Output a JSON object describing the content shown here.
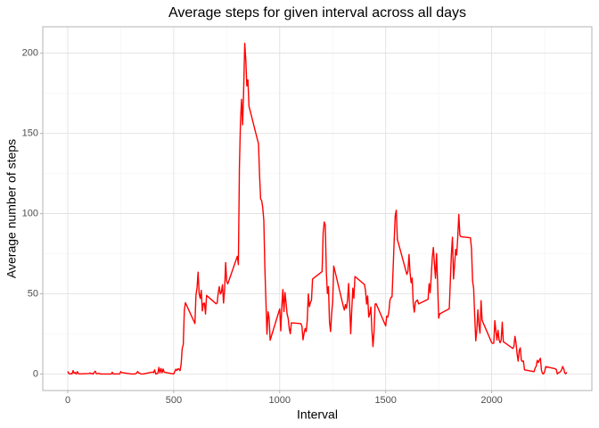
{
  "chart_data": {
    "type": "line",
    "title": "Average steps for given interval across all days",
    "x_label": "Interval",
    "y_label": "Average number of steps",
    "color": "#ff0000",
    "grid": true,
    "xlim": [
      -117.75,
      2472.75
    ],
    "ylim": [
      -10.3,
      216.5
    ],
    "xticks": [
      0,
      500,
      1000,
      1500,
      2000
    ],
    "yticks": [
      0,
      50,
      100,
      150,
      200
    ],
    "x": [
      0,
      5,
      10,
      15,
      20,
      25,
      30,
      35,
      40,
      45,
      50,
      55,
      100,
      105,
      110,
      115,
      120,
      125,
      130,
      135,
      140,
      145,
      150,
      155,
      200,
      205,
      210,
      215,
      220,
      225,
      230,
      235,
      240,
      245,
      250,
      255,
      300,
      305,
      310,
      315,
      320,
      325,
      330,
      335,
      340,
      345,
      350,
      355,
      400,
      405,
      410,
      415,
      420,
      425,
      430,
      435,
      440,
      445,
      450,
      455,
      500,
      505,
      510,
      515,
      520,
      525,
      530,
      535,
      540,
      545,
      550,
      555,
      600,
      605,
      610,
      615,
      620,
      625,
      630,
      635,
      640,
      645,
      650,
      655,
      700,
      705,
      710,
      715,
      720,
      725,
      730,
      735,
      740,
      745,
      750,
      755,
      800,
      805,
      810,
      815,
      820,
      825,
      830,
      835,
      840,
      845,
      850,
      855,
      900,
      905,
      910,
      915,
      920,
      925,
      930,
      935,
      940,
      945,
      950,
      955,
      1000,
      1005,
      1010,
      1015,
      1020,
      1025,
      1030,
      1035,
      1040,
      1045,
      1050,
      1055,
      1100,
      1105,
      1110,
      1115,
      1120,
      1125,
      1130,
      1135,
      1140,
      1145,
      1150,
      1155,
      1200,
      1205,
      1210,
      1215,
      1220,
      1225,
      1230,
      1235,
      1240,
      1245,
      1250,
      1255,
      1300,
      1305,
      1310,
      1315,
      1320,
      1325,
      1330,
      1335,
      1340,
      1345,
      1350,
      1355,
      1400,
      1405,
      1410,
      1415,
      1420,
      1425,
      1430,
      1435,
      1440,
      1445,
      1450,
      1455,
      1500,
      1505,
      1510,
      1515,
      1520,
      1525,
      1530,
      1535,
      1540,
      1545,
      1550,
      1555,
      1600,
      1605,
      1610,
      1615,
      1620,
      1625,
      1630,
      1635,
      1640,
      1645,
      1650,
      1655,
      1700,
      1705,
      1710,
      1715,
      1720,
      1725,
      1730,
      1735,
      1740,
      1745,
      1750,
      1755,
      1800,
      1805,
      1810,
      1815,
      1820,
      1825,
      1830,
      1835,
      1840,
      1845,
      1850,
      1855,
      1900,
      1905,
      1910,
      1915,
      1920,
      1925,
      1930,
      1935,
      1940,
      1945,
      1950,
      1955,
      2000,
      2005,
      2010,
      2015,
      2020,
      2025,
      2030,
      2035,
      2040,
      2045,
      2050,
      2055,
      2100,
      2105,
      2110,
      2115,
      2120,
      2125,
      2130,
      2135,
      2140,
      2145,
      2150,
      2155,
      2200,
      2205,
      2210,
      2215,
      2220,
      2225,
      2230,
      2235,
      2240,
      2245,
      2250,
      2255,
      2300,
      2305,
      2310,
      2315,
      2320,
      2325,
      2330,
      2335,
      2340,
      2345,
      2350,
      2355
    ],
    "values": [
      1.7,
      0.3,
      0.1,
      0.2,
      0.1,
      2.1,
      0.5,
      0.9,
      0,
      1.5,
      0.3,
      0.1,
      0.3,
      0.7,
      0.2,
      0.3,
      0,
      1.1,
      1.8,
      0.2,
      0.2,
      0.4,
      0.3,
      0,
      0,
      0,
      1.1,
      0,
      0,
      0.1,
      0,
      0.2,
      0,
      0,
      1.5,
      0.9,
      0,
      0,
      0,
      0,
      0.2,
      0.6,
      1.6,
      0.6,
      0.5,
      0.1,
      0,
      0,
      1.2,
      0.9,
      2.6,
      0,
      0.3,
      0.4,
      4.1,
      0.7,
      3.5,
      0.8,
      3.1,
      1.1,
      0,
      1.6,
      3,
      2.2,
      3.3,
      3,
      2.1,
      6.1,
      16,
      18.3,
      39.5,
      44.5,
      31.5,
      49.3,
      53.8,
      63.5,
      50,
      47.1,
      52.2,
      39.3,
      44,
      44.2,
      37.4,
      49,
      43.8,
      44.4,
      50.5,
      54.5,
      49.9,
      51,
      55.7,
      44.3,
      52.3,
      69.5,
      57.8,
      56.2,
      73.4,
      68.2,
      129.4,
      157.5,
      171.2,
      155.4,
      177.3,
      206.2,
      195.9,
      179.6,
      183.4,
      167,
      143.5,
      124,
      109.1,
      108.1,
      103.7,
      96,
      66.2,
      45.2,
      24.8,
      38.8,
      35,
      21.1,
      40.6,
      26.9,
      42.4,
      52.7,
      38.9,
      50.8,
      44.3,
      37.4,
      34.7,
      28.3,
      25.1,
      31.9,
      31.4,
      29.7,
      21.3,
      25.5,
      28.4,
      26.5,
      33.4,
      50,
      42,
      44.6,
      46,
      59.2,
      63.9,
      87.7,
      94.8,
      92.8,
      63.4,
      50.2,
      54.5,
      32.4,
      26.5,
      37.7,
      45.1,
      67.3,
      42.3,
      39.9,
      43.3,
      41,
      46.2,
      56.4,
      42.8,
      25.1,
      40,
      53.5,
      47.3,
      60.8,
      55.8,
      51.9,
      43.6,
      48.7,
      35.5,
      37.5,
      41.8,
      27.5,
      17.1,
      26.1,
      43.6,
      43.8,
      30,
      36.1,
      35.5,
      38.8,
      45.9,
      47.8,
      48.1,
      65.3,
      82.9,
      98.7,
      102.1,
      84,
      62.1,
      64.1,
      74.5,
      63.2,
      56.9,
      59.8,
      43.9,
      38.6,
      44.7,
      45.5,
      46.2,
      43.7,
      46.6,
      56.3,
      50.7,
      61.2,
      72.7,
      78.9,
      68.9,
      59.7,
      75.1,
      56.5,
      34.8,
      37.5,
      40.7,
      58,
      74.7,
      85.3,
      59.3,
      67.8,
      77.7,
      74.2,
      85.3,
      99.5,
      86.6,
      85.6,
      84.9,
      77.8,
      58,
      53.4,
      36.3,
      20.7,
      27.4,
      40,
      30.2,
      25.5,
      45.7,
      33.5,
      19.6,
      19,
      19.3,
      33.3,
      26.8,
      21.2,
      27.3,
      21.3,
      19.5,
      21.3,
      32.3,
      20.2,
      15.9,
      17.2,
      23.5,
      19.2,
      12.5,
      8,
      14.7,
      16.3,
      8.7,
      7.8,
      8.1,
      2.6,
      1.5,
      3.7,
      4.8,
      8.5,
      7.1,
      8.7,
      9.8,
      2.2,
      0.3,
      0.1,
      1.6,
      4.6,
      3.3,
      2.8,
      0,
      0.8,
      1,
      1.6,
      2.6,
      4.7,
      3.3,
      0.6,
      0.2,
      1.1
    ]
  }
}
